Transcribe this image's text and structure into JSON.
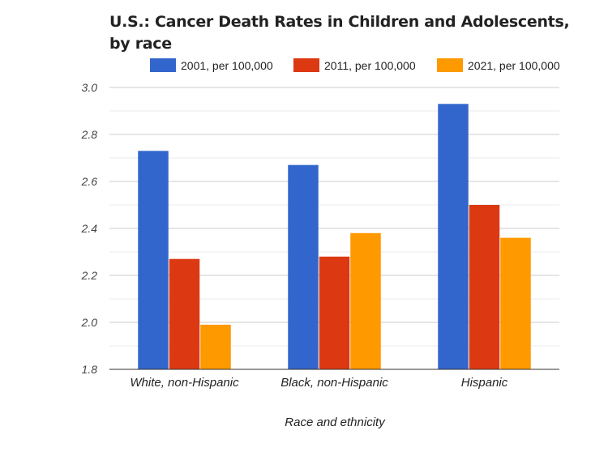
{
  "chart_data": {
    "type": "bar",
    "title": "U.S.: Cancer Death Rates in Children and Adolescents, by race",
    "xlabel": "Race and ethnicity",
    "ylabel": "",
    "categories": [
      "White, non-Hispanic",
      "Black, non-Hispanic",
      "Hispanic"
    ],
    "series": [
      {
        "name": "2001, per 100,000",
        "values": [
          2.73,
          2.67,
          2.93
        ],
        "color": "#3366cc"
      },
      {
        "name": "2011, per 100,000",
        "values": [
          2.27,
          2.28,
          2.5
        ],
        "color": "#dc3912"
      },
      {
        "name": "2021, per 100,000",
        "values": [
          1.99,
          2.38,
          2.36
        ],
        "color": "#ff9900"
      }
    ],
    "ylim": [
      1.8,
      3.0
    ],
    "yticks": [
      "1.8",
      "2.0",
      "2.2",
      "2.4",
      "2.6",
      "2.8",
      "3.0"
    ],
    "grid": true,
    "legend": "top"
  }
}
